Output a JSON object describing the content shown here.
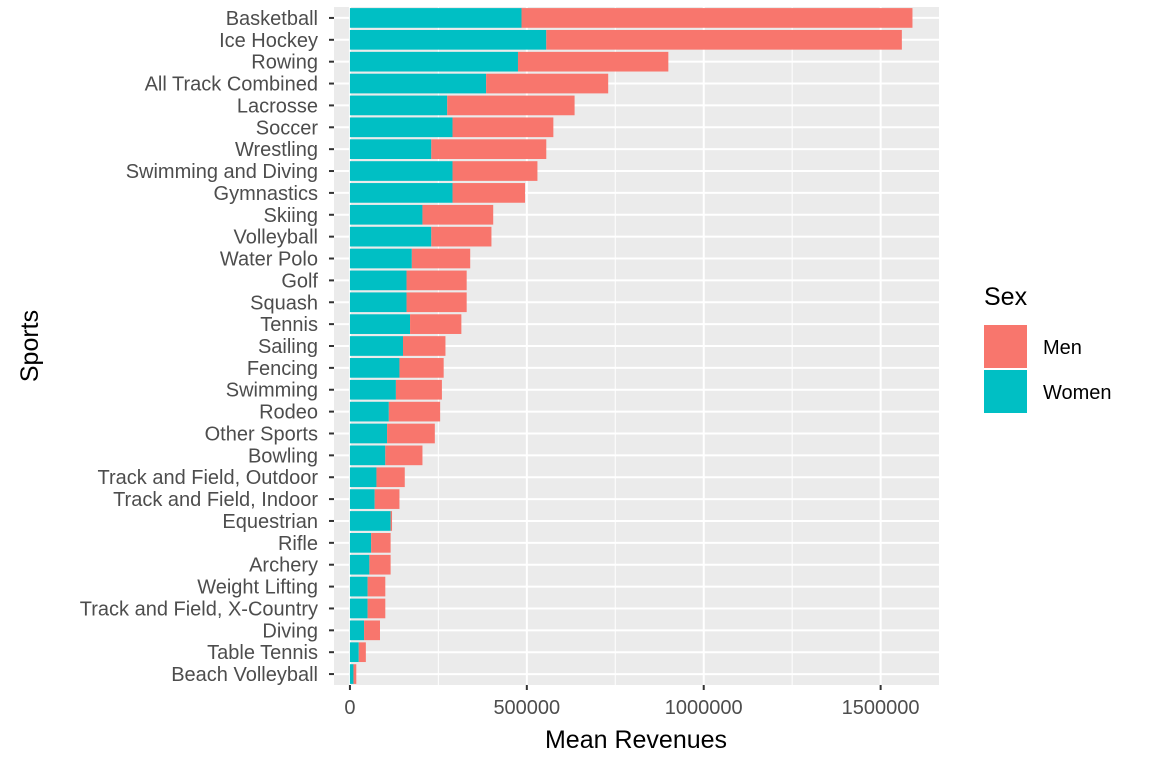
{
  "chart_data": {
    "type": "bar",
    "orientation": "horizontal",
    "stacked": true,
    "xlabel": "Mean Revenues",
    "ylabel": "Sports",
    "xlim": [
      -45000,
      1665000
    ],
    "x_ticks": [
      0,
      500000,
      1000000,
      1500000
    ],
    "x_tick_labels": [
      "0",
      "500000",
      "1000000",
      "1500000"
    ],
    "grid": true,
    "legend": {
      "title": "Sex",
      "position": "right"
    },
    "categories": [
      "Basketball",
      "Ice Hockey",
      "Rowing",
      "All Track Combined",
      "Lacrosse",
      "Soccer",
      "Wrestling",
      "Swimming and Diving",
      "Gymnastics",
      "Skiing",
      "Volleyball",
      "Water Polo",
      "Golf",
      "Squash",
      "Tennis",
      "Sailing",
      "Fencing",
      "Swimming",
      "Rodeo",
      "Other Sports",
      "Bowling",
      "Track and Field, Outdoor",
      "Track and Field, Indoor",
      "Equestrian",
      "Rifle",
      "Archery",
      "Weight Lifting",
      "Track and Field, X-Country",
      "Diving",
      "Table Tennis",
      "Beach Volleyball"
    ],
    "series": [
      {
        "name": "Women",
        "color": "#00BFC4",
        "values": [
          485000,
          555000,
          475000,
          385000,
          275000,
          290000,
          230000,
          290000,
          290000,
          205000,
          230000,
          175000,
          160000,
          160000,
          170000,
          150000,
          140000,
          130000,
          110000,
          105000,
          100000,
          75000,
          70000,
          115000,
          60000,
          55000,
          50000,
          50000,
          40000,
          25000,
          10000
        ]
      },
      {
        "name": "Men",
        "color": "#F8766D",
        "values": [
          1105000,
          1005000,
          425000,
          345000,
          360000,
          285000,
          325000,
          240000,
          205000,
          200000,
          170000,
          165000,
          170000,
          170000,
          145000,
          120000,
          125000,
          130000,
          145000,
          135000,
          105000,
          80000,
          70000,
          4000,
          55000,
          60000,
          50000,
          50000,
          45000,
          20000,
          8000
        ]
      }
    ]
  }
}
